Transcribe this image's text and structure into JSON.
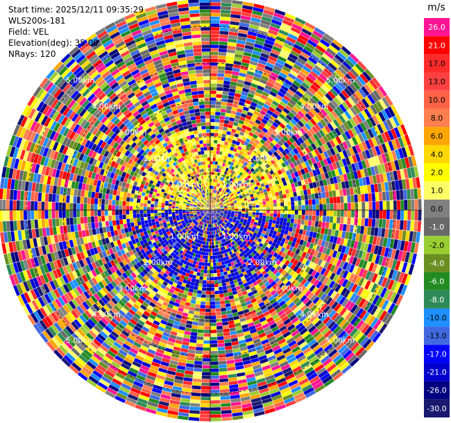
{
  "header": {
    "start_time": "Start time: 2025/12/11 09:35:29",
    "instrument": "WLS200s-181",
    "field": "Field: VEL",
    "elevation": "Elevation(deg): 35.00",
    "nrays": "NRays: 120"
  },
  "colorbar": {
    "unit": "m/s",
    "levels": [
      {
        "label": "26.0",
        "color": "#ff1493"
      },
      {
        "label": "21.0",
        "color": "#ff0000"
      },
      {
        "label": "17.0",
        "color": "#ff2a2a"
      },
      {
        "label": "13.0",
        "color": "#ff4040"
      },
      {
        "label": "10.0",
        "color": "#ff6347"
      },
      {
        "label": "8.0",
        "color": "#ff7f50"
      },
      {
        "label": "6.0",
        "color": "#ffa500"
      },
      {
        "label": "4.0",
        "color": "#ffd700"
      },
      {
        "label": "2.0",
        "color": "#ffff00"
      },
      {
        "label": "1.0",
        "color": "#ffff66"
      },
      {
        "label": "0.0",
        "color": "#808080"
      },
      {
        "label": "-1.0",
        "color": "#696969"
      },
      {
        "label": "-2.0",
        "color": "#9acd32"
      },
      {
        "label": "-4.0",
        "color": "#6b8e23"
      },
      {
        "label": "-6.0",
        "color": "#228b22"
      },
      {
        "label": "-8.0",
        "color": "#2e8b57"
      },
      {
        "label": "-10.0",
        "color": "#1e90ff"
      },
      {
        "label": "-13.0",
        "color": "#4169e1"
      },
      {
        "label": "-17.0",
        "color": "#0000ff"
      },
      {
        "label": "-21.0",
        "color": "#0000cd"
      },
      {
        "label": "-26.0",
        "color": "#000080"
      },
      {
        "label": "-30.0",
        "color": "#191970"
      }
    ]
  },
  "chart_data": {
    "type": "heatmap",
    "subtype": "ppi-polar",
    "field": "VEL",
    "unit": "m/s",
    "n_rays": 120,
    "range_ring_labels_km": [
      "1.00km",
      "1.00km",
      "1.00km",
      "1.00km",
      "2.00km",
      "2.00km",
      "2.00km",
      "2.00km",
      "3.00km",
      "3.00km",
      "3.00km",
      "3.00km",
      "4.00km",
      "4.00km",
      "4.00km",
      "4.00km",
      "5.00km",
      "5.00km",
      "5.00km",
      "5.00km"
    ],
    "range_rings_km": [
      1,
      2,
      3,
      4,
      5
    ],
    "max_range_km": 5.6,
    "color_scale_range": [
      -30.0,
      30.0
    ],
    "grid": true
  }
}
